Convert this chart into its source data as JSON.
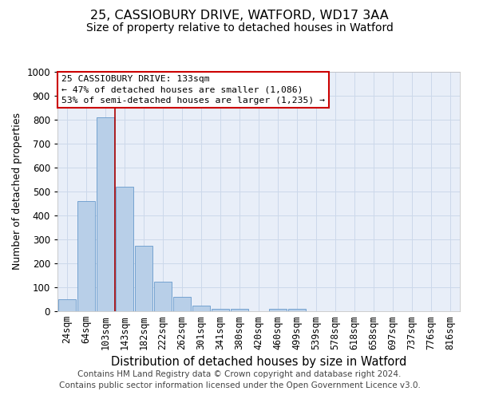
{
  "title1": "25, CASSIOBURY DRIVE, WATFORD, WD17 3AA",
  "title2": "Size of property relative to detached houses in Watford",
  "xlabel": "Distribution of detached houses by size in Watford",
  "ylabel": "Number of detached properties",
  "categories": [
    "24sqm",
    "64sqm",
    "103sqm",
    "143sqm",
    "182sqm",
    "222sqm",
    "262sqm",
    "301sqm",
    "341sqm",
    "380sqm",
    "420sqm",
    "460sqm",
    "499sqm",
    "539sqm",
    "578sqm",
    "618sqm",
    "658sqm",
    "697sqm",
    "737sqm",
    "776sqm",
    "816sqm"
  ],
  "bar_values": [
    50,
    460,
    810,
    520,
    275,
    125,
    60,
    25,
    10,
    10,
    0,
    10,
    10,
    0,
    0,
    0,
    0,
    0,
    0,
    0,
    0
  ],
  "bar_color": "#b8cfe8",
  "bar_edge_color": "#6699cc",
  "grid_color": "#ccd8ea",
  "background_color": "#e8eef8",
  "vline_x_index": 3,
  "vline_color": "#aa0000",
  "annotation_text": "25 CASSIOBURY DRIVE: 133sqm\n← 47% of detached houses are smaller (1,086)\n53% of semi-detached houses are larger (1,235) →",
  "annotation_box_color": "#ffffff",
  "annotation_box_edge_color": "#cc0000",
  "footer1": "Contains HM Land Registry data © Crown copyright and database right 2024.",
  "footer2": "Contains public sector information licensed under the Open Government Licence v3.0.",
  "ylim": [
    0,
    1000
  ],
  "yticks": [
    0,
    100,
    200,
    300,
    400,
    500,
    600,
    700,
    800,
    900,
    1000
  ],
  "title1_fontsize": 11.5,
  "title2_fontsize": 10,
  "xlabel_fontsize": 10.5,
  "ylabel_fontsize": 9,
  "tick_fontsize": 8.5,
  "footer_fontsize": 7.5
}
